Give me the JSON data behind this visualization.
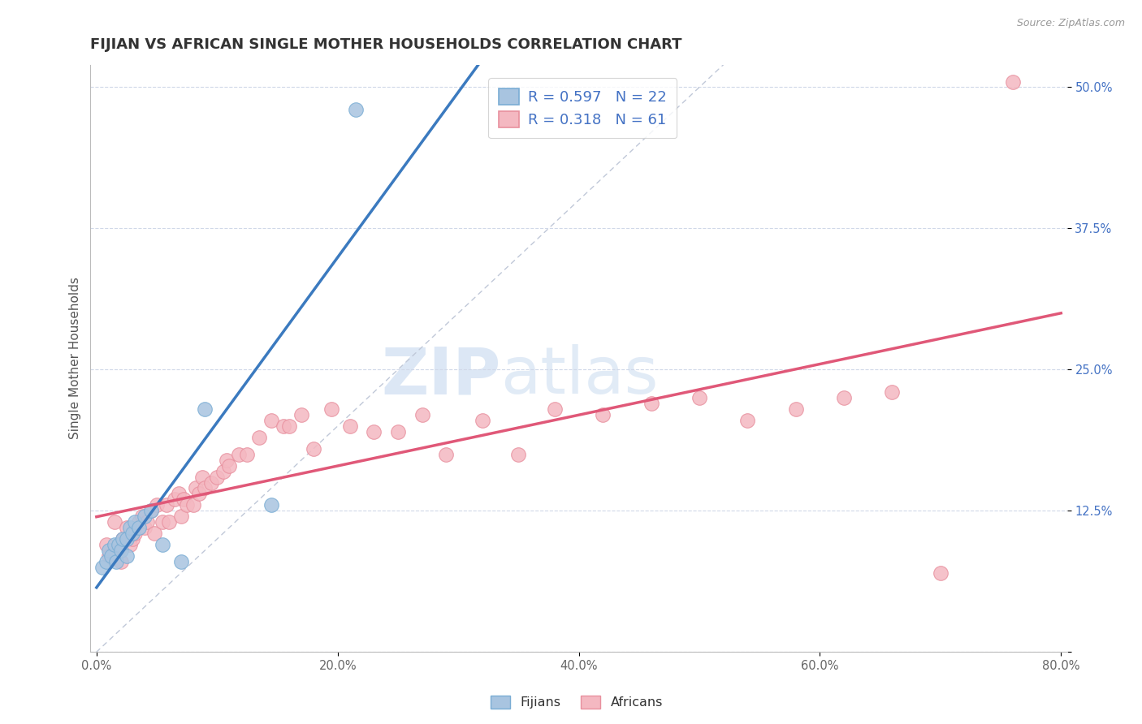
{
  "title": "FIJIAN VS AFRICAN SINGLE MOTHER HOUSEHOLDS CORRELATION CHART",
  "source": "Source: ZipAtlas.com",
  "ylabel": "Single Mother Households",
  "xlim": [
    -0.005,
    0.805
  ],
  "ylim": [
    0.0,
    0.52
  ],
  "xticks": [
    0.0,
    0.2,
    0.4,
    0.6,
    0.8
  ],
  "xtick_labels": [
    "0.0%",
    "20.0%",
    "40.0%",
    "60.0%",
    "80.0%"
  ],
  "yticks": [
    0.0,
    0.125,
    0.25,
    0.375,
    0.5
  ],
  "ytick_labels": [
    "",
    "12.5%",
    "25.0%",
    "37.5%",
    "50.0%"
  ],
  "fijian_color": "#a8c4e0",
  "african_color": "#f4b8c1",
  "fijian_edge": "#7aadd4",
  "african_edge": "#e8909e",
  "regression_fijian_color": "#3b7abf",
  "regression_african_color": "#e05878",
  "ref_line_color": "#c0c8d8",
  "legend_R_fijian": "0.597",
  "legend_N_fijian": "22",
  "legend_R_african": "0.318",
  "legend_N_african": "61",
  "watermark_zip": "ZIP",
  "watermark_atlas": "atlas",
  "fijian_x": [
    0.005,
    0.008,
    0.01,
    0.012,
    0.015,
    0.016,
    0.018,
    0.02,
    0.022,
    0.025,
    0.025,
    0.028,
    0.03,
    0.032,
    0.035,
    0.04,
    0.045,
    0.055,
    0.07,
    0.09,
    0.145,
    0.215
  ],
  "fijian_y": [
    0.075,
    0.08,
    0.09,
    0.085,
    0.095,
    0.08,
    0.095,
    0.09,
    0.1,
    0.085,
    0.1,
    0.11,
    0.105,
    0.115,
    0.11,
    0.12,
    0.125,
    0.095,
    0.08,
    0.215,
    0.13,
    0.48
  ],
  "african_x": [
    0.008,
    0.01,
    0.015,
    0.018,
    0.02,
    0.022,
    0.025,
    0.028,
    0.03,
    0.032,
    0.035,
    0.038,
    0.04,
    0.042,
    0.045,
    0.048,
    0.05,
    0.055,
    0.058,
    0.06,
    0.065,
    0.068,
    0.07,
    0.072,
    0.075,
    0.08,
    0.082,
    0.085,
    0.088,
    0.09,
    0.095,
    0.1,
    0.105,
    0.108,
    0.11,
    0.118,
    0.125,
    0.135,
    0.145,
    0.155,
    0.16,
    0.17,
    0.18,
    0.195,
    0.21,
    0.23,
    0.25,
    0.27,
    0.29,
    0.32,
    0.35,
    0.38,
    0.42,
    0.46,
    0.5,
    0.54,
    0.58,
    0.62,
    0.66,
    0.7,
    0.76
  ],
  "african_y": [
    0.095,
    0.085,
    0.115,
    0.09,
    0.08,
    0.1,
    0.11,
    0.095,
    0.1,
    0.105,
    0.115,
    0.12,
    0.11,
    0.115,
    0.125,
    0.105,
    0.13,
    0.115,
    0.13,
    0.115,
    0.135,
    0.14,
    0.12,
    0.135,
    0.13,
    0.13,
    0.145,
    0.14,
    0.155,
    0.145,
    0.15,
    0.155,
    0.16,
    0.17,
    0.165,
    0.175,
    0.175,
    0.19,
    0.205,
    0.2,
    0.2,
    0.21,
    0.18,
    0.215,
    0.2,
    0.195,
    0.195,
    0.21,
    0.175,
    0.205,
    0.175,
    0.215,
    0.21,
    0.22,
    0.225,
    0.205,
    0.215,
    0.225,
    0.23,
    0.07,
    0.505
  ],
  "background_color": "#ffffff",
  "grid_color": "#d0d8e8",
  "title_fontsize": 13,
  "axis_label_fontsize": 11,
  "tick_fontsize": 10.5,
  "legend_fontsize": 13
}
